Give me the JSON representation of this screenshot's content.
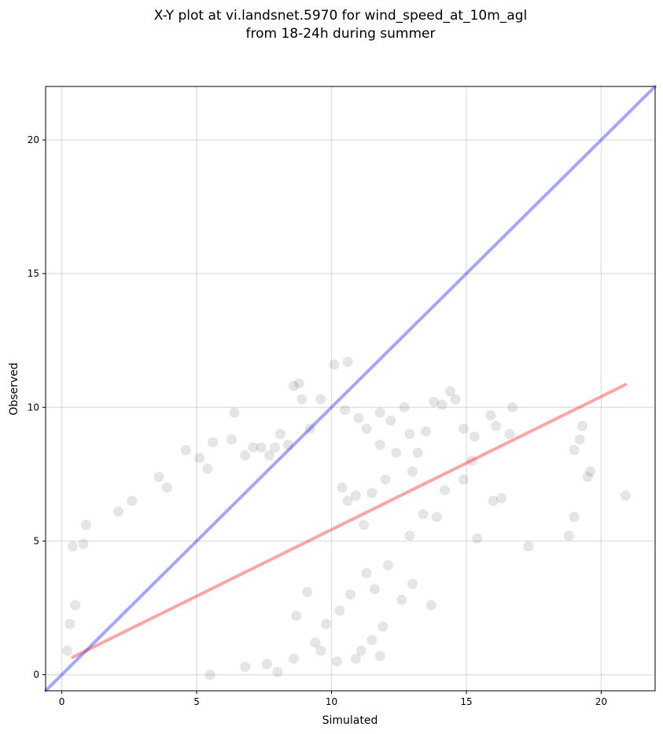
{
  "chart_data": {
    "type": "scatter",
    "title_line1": "X-Y plot at vi.landsnet.5970 for wind_speed_at_10m_agl",
    "title_line2": "from 18-24h during summer",
    "xlabel": "Simulated",
    "ylabel": "Observed",
    "xlim": [
      -0.6,
      22
    ],
    "ylim": [
      -0.6,
      22
    ],
    "x_ticks": [
      0,
      5,
      10,
      15,
      20
    ],
    "y_ticks": [
      0,
      5,
      10,
      15,
      20
    ],
    "x_tick_labels": [
      "0",
      "5",
      "10",
      "15",
      "20"
    ],
    "y_tick_labels": [
      "0",
      "5",
      "10",
      "15",
      "20"
    ],
    "grid": true,
    "point_color": "#000000",
    "identity_line": {
      "x": [
        -0.6,
        22
      ],
      "y": [
        -0.6,
        22
      ],
      "color": "#0000ee"
    },
    "fit_line": {
      "x": [
        0.4,
        20.9
      ],
      "y": [
        0.65,
        10.85
      ],
      "color": "#ee0000"
    },
    "points": [
      [
        0.4,
        4.8
      ],
      [
        0.8,
        4.9
      ],
      [
        0.9,
        5.6
      ],
      [
        2.1,
        6.1
      ],
      [
        2.6,
        6.5
      ],
      [
        3.6,
        7.4
      ],
      [
        3.9,
        7.0
      ],
      [
        4.6,
        8.4
      ],
      [
        5.1,
        8.1
      ],
      [
        5.4,
        7.7
      ],
      [
        5.6,
        8.7
      ],
      [
        6.3,
        8.8
      ],
      [
        6.4,
        9.8
      ],
      [
        6.8,
        8.2
      ],
      [
        7.1,
        8.5
      ],
      [
        7.4,
        8.5
      ],
      [
        7.7,
        8.2
      ],
      [
        7.9,
        8.5
      ],
      [
        8.1,
        9.0
      ],
      [
        8.4,
        8.6
      ],
      [
        8.6,
        10.8
      ],
      [
        8.8,
        10.9
      ],
      [
        8.9,
        10.3
      ],
      [
        9.2,
        9.2
      ],
      [
        9.6,
        10.3
      ],
      [
        10.1,
        11.6
      ],
      [
        10.6,
        11.7
      ],
      [
        10.5,
        9.9
      ],
      [
        11.0,
        9.6
      ],
      [
        11.3,
        9.2
      ],
      [
        11.8,
        9.8
      ],
      [
        12.2,
        9.5
      ],
      [
        12.7,
        10.0
      ],
      [
        12.9,
        9.0
      ],
      [
        13.5,
        9.1
      ],
      [
        13.8,
        10.2
      ],
      [
        14.1,
        10.1
      ],
      [
        14.4,
        10.6
      ],
      [
        14.6,
        10.3
      ],
      [
        14.9,
        9.2
      ],
      [
        15.3,
        8.9
      ],
      [
        15.9,
        9.7
      ],
      [
        16.1,
        9.3
      ],
      [
        16.6,
        9.0
      ],
      [
        16.7,
        10.0
      ],
      [
        19.0,
        8.4
      ],
      [
        19.2,
        8.8
      ],
      [
        19.3,
        9.3
      ],
      [
        19.5,
        7.4
      ],
      [
        19.6,
        7.6
      ],
      [
        20.9,
        6.7
      ],
      [
        19.0,
        5.9
      ],
      [
        18.8,
        5.2
      ],
      [
        17.3,
        4.8
      ],
      [
        15.4,
        5.1
      ],
      [
        16.0,
        6.5
      ],
      [
        16.3,
        6.6
      ],
      [
        15.2,
        8.0
      ],
      [
        14.9,
        7.3
      ],
      [
        14.2,
        6.9
      ],
      [
        13.9,
        5.9
      ],
      [
        13.4,
        6.0
      ],
      [
        12.9,
        5.2
      ],
      [
        12.6,
        2.8
      ],
      [
        13.0,
        3.4
      ],
      [
        13.7,
        2.6
      ],
      [
        11.8,
        0.7
      ],
      [
        11.5,
        1.3
      ],
      [
        11.1,
        0.9
      ],
      [
        10.9,
        0.6
      ],
      [
        10.2,
        0.5
      ],
      [
        9.6,
        0.9
      ],
      [
        8.6,
        0.6
      ],
      [
        8.0,
        0.1
      ],
      [
        7.6,
        0.4
      ],
      [
        6.8,
        0.3
      ],
      [
        5.5,
        0.0
      ],
      [
        0.2,
        0.9
      ],
      [
        0.3,
        1.9
      ],
      [
        0.5,
        2.6
      ],
      [
        11.3,
        3.8
      ],
      [
        11.9,
        1.8
      ],
      [
        12.1,
        4.1
      ],
      [
        11.6,
        3.2
      ],
      [
        10.7,
        3.0
      ],
      [
        10.3,
        2.4
      ],
      [
        9.8,
        1.9
      ],
      [
        9.4,
        1.2
      ],
      [
        9.1,
        3.1
      ],
      [
        8.7,
        2.2
      ],
      [
        13.0,
        7.6
      ],
      [
        13.2,
        8.3
      ],
      [
        12.4,
        8.3
      ],
      [
        12.0,
        7.3
      ],
      [
        11.5,
        6.8
      ],
      [
        10.9,
        6.7
      ],
      [
        11.8,
        8.6
      ],
      [
        11.2,
        5.6
      ],
      [
        10.6,
        6.5
      ],
      [
        10.4,
        7.0
      ]
    ]
  }
}
